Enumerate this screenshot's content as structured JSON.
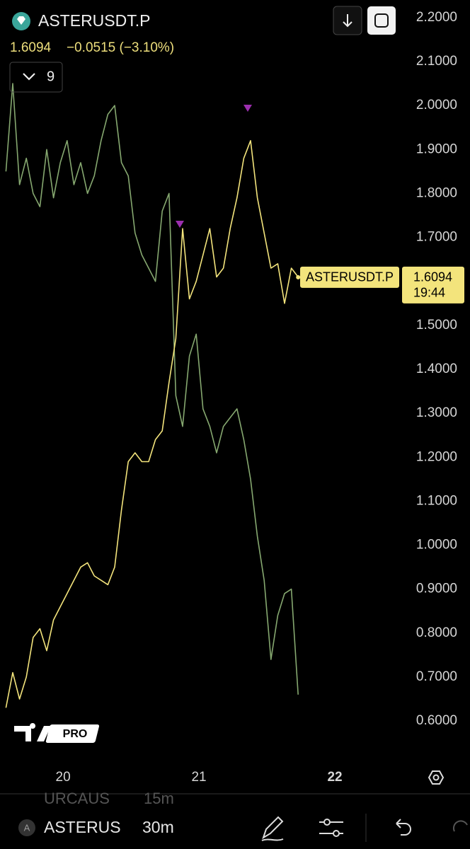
{
  "header": {
    "symbol": "ASTERUSDT.P",
    "price": 1.6094,
    "change": "−0.0515 (−3.10%)",
    "indicator_count": 9
  },
  "chart_data": {
    "type": "line",
    "x": [
      19.58,
      19.63,
      19.68,
      19.73,
      19.78,
      19.83,
      19.88,
      19.93,
      19.98,
      20.03,
      20.08,
      20.13,
      20.18,
      20.23,
      20.28,
      20.33,
      20.38,
      20.43,
      20.48,
      20.53,
      20.58,
      20.63,
      20.68,
      20.73,
      20.78,
      20.83,
      20.88,
      20.93,
      20.98,
      21.03,
      21.08,
      21.13,
      21.18,
      21.23,
      21.28,
      21.33,
      21.38,
      21.43,
      21.48,
      21.53,
      21.58,
      21.63,
      21.68,
      21.73
    ],
    "xlim": [
      19.536,
      22.505
    ],
    "xticks": [
      20,
      21,
      22
    ],
    "ylim": [
      0.51,
      2.24
    ],
    "yticks": [
      {
        "value": 0.6,
        "label": "0.6000"
      },
      {
        "value": 0.7,
        "label": "0.7000"
      },
      {
        "value": 0.8,
        "label": "0.8000"
      },
      {
        "value": 0.9,
        "label": "0.9000"
      },
      {
        "value": 1.0,
        "label": "1.0000"
      },
      {
        "value": 1.1,
        "label": "1.1000"
      },
      {
        "value": 1.2,
        "label": "1.2000"
      },
      {
        "value": 1.3,
        "label": "1.3000"
      },
      {
        "value": 1.4,
        "label": "1.4000"
      },
      {
        "value": 1.5,
        "label": "1.5000"
      },
      {
        "value": 1.6,
        "label": "1.6000"
      },
      {
        "value": 1.7,
        "label": "1.7000"
      },
      {
        "value": 1.8,
        "label": "1.8000"
      },
      {
        "value": 1.9,
        "label": "1.9000"
      },
      {
        "value": 2.0,
        "label": "2.0000"
      },
      {
        "value": 2.1,
        "label": "2.1000"
      },
      {
        "value": 2.2,
        "label": "2.2000"
      }
    ],
    "series": [
      {
        "name": "ASTERUSDT.P",
        "color": "#f3e47c",
        "values": [
          0.63,
          0.71,
          0.65,
          0.7,
          0.79,
          0.81,
          0.76,
          0.83,
          0.86,
          0.89,
          0.92,
          0.95,
          0.96,
          0.93,
          0.92,
          0.91,
          0.95,
          1.08,
          1.19,
          1.21,
          1.19,
          1.19,
          1.24,
          1.26,
          1.37,
          1.47,
          1.72,
          1.56,
          1.6,
          1.66,
          1.72,
          1.61,
          1.63,
          1.72,
          1.79,
          1.88,
          1.92,
          1.79,
          1.71,
          1.63,
          1.64,
          1.55,
          1.63,
          1.61
        ]
      },
      {
        "color": "#86a870",
        "values": [
          1.85,
          2.05,
          1.82,
          1.88,
          1.8,
          1.77,
          1.9,
          1.79,
          1.87,
          1.92,
          1.82,
          1.87,
          1.8,
          1.84,
          1.92,
          1.98,
          2.0,
          1.87,
          1.84,
          1.71,
          1.66,
          1.63,
          1.6,
          1.76,
          1.8,
          1.34,
          1.27,
          1.43,
          1.48,
          1.31,
          1.27,
          1.21,
          1.27,
          1.29,
          1.31,
          1.24,
          1.15,
          1.02,
          0.92,
          0.74,
          0.84,
          0.89,
          0.9,
          0.66
        ]
      }
    ],
    "last_price_label": {
      "symbol": "ASTERUSDT.P",
      "price": 1.6094,
      "time": "19:44"
    }
  },
  "logo": {
    "badge": "PRO"
  },
  "toolbar": {
    "ghost_tab": {
      "symbol": "URCAUS",
      "interval": "15m"
    },
    "symbol_badge": "A",
    "symbol": "ASTERUS",
    "interval": "30m"
  }
}
